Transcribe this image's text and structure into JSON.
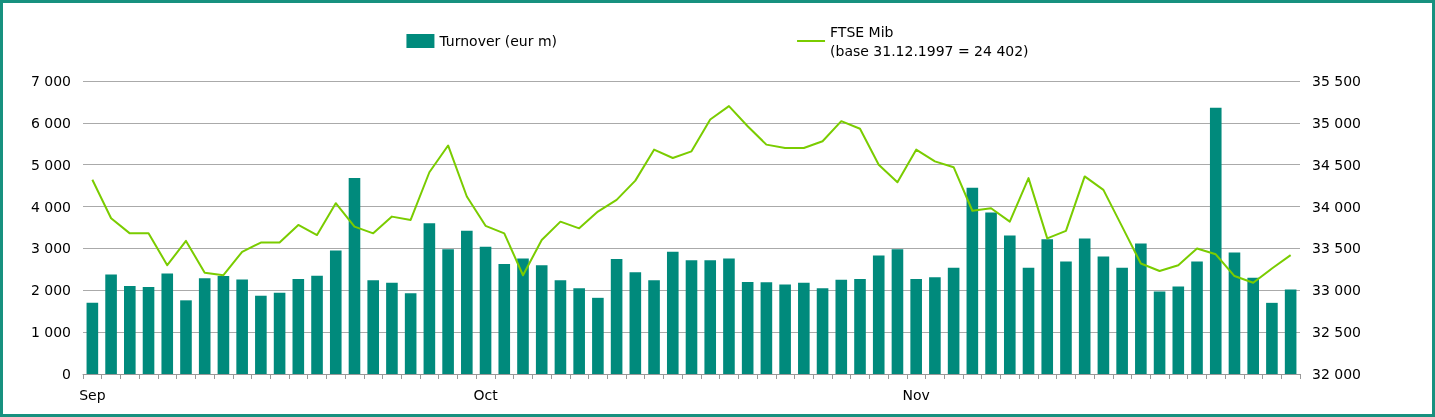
{
  "chart_data": {
    "type": "bar",
    "categories": [
      "Sep",
      null,
      null,
      null,
      null,
      null,
      null,
      null,
      null,
      null,
      null,
      null,
      null,
      null,
      null,
      null,
      null,
      null,
      null,
      null,
      null,
      "Oct",
      null,
      null,
      null,
      null,
      null,
      null,
      null,
      null,
      null,
      null,
      null,
      null,
      null,
      null,
      null,
      null,
      null,
      null,
      null,
      null,
      null,
      null,
      "Nov",
      null,
      null,
      null,
      null,
      null,
      null,
      null,
      null,
      null,
      null,
      null,
      null,
      null,
      null,
      null,
      null,
      null,
      null,
      null,
      null
    ],
    "series": [
      {
        "name": "Turnover (eur m)",
        "color": "#008a7c",
        "values": [
          1700,
          2380,
          2100,
          2080,
          2400,
          1760,
          2290,
          2340,
          2260,
          1870,
          1940,
          2270,
          2350,
          2950,
          4680,
          2240,
          2180,
          1930,
          3600,
          2980,
          3420,
          3040,
          2630,
          2760,
          2600,
          2240,
          2050,
          1820,
          2750,
          2430,
          2240,
          2920,
          2720,
          2720,
          2760,
          2200,
          2190,
          2140,
          2180,
          2050,
          2250,
          2270,
          2830,
          2980,
          2270,
          2310,
          2540,
          4450,
          3860,
          3310,
          2540,
          3220,
          2690,
          3240,
          2810,
          2540,
          3120,
          1970,
          2090,
          2690,
          6360,
          2900,
          2300,
          1700,
          2020
        ]
      },
      {
        "name": "FTSE Mib\n(base 31.12.1997 = 24 402)",
        "type": "line",
        "axis": "y2",
        "color": "#7acc00",
        "values": [
          34320,
          33860,
          33680,
          33680,
          33300,
          33590,
          33210,
          33180,
          33460,
          33570,
          33570,
          33780,
          33660,
          34040,
          33760,
          33680,
          33880,
          33840,
          34410,
          34730,
          34120,
          33770,
          33680,
          33180,
          33600,
          33820,
          33740,
          33940,
          34080,
          34310,
          34680,
          34580,
          34660,
          35040,
          35200,
          34960,
          34740,
          34700,
          34700,
          34780,
          35020,
          34930,
          34500,
          34290,
          34680,
          34540,
          34470,
          33950,
          33980,
          33820,
          34340,
          33620,
          33710,
          34360,
          34200,
          33760,
          33320,
          33230,
          33300,
          33500,
          33430,
          33170,
          33090,
          33260,
          33420
        ]
      }
    ],
    "ylim": [
      0,
      7000
    ],
    "yticks": [
      {
        "value": 0,
        "label": "0"
      },
      {
        "value": 1000,
        "label": "1 000"
      },
      {
        "value": 2000,
        "label": "2 000"
      },
      {
        "value": 3000,
        "label": "3 000"
      },
      {
        "value": 4000,
        "label": "4 000"
      },
      {
        "value": 5000,
        "label": "5 000"
      },
      {
        "value": 6000,
        "label": "6 000"
      },
      {
        "value": 7000,
        "label": "7 000"
      }
    ],
    "y2lim": [
      32000,
      35500
    ],
    "y2ticks": [
      {
        "value": 32000,
        "label": "32 000"
      },
      {
        "value": 32500,
        "label": "32 500"
      },
      {
        "value": 33000,
        "label": "33 000"
      },
      {
        "value": 33500,
        "label": "33 500"
      },
      {
        "value": 34000,
        "label": "34 000"
      },
      {
        "value": 34500,
        "label": "34 500"
      },
      {
        "value": 35000,
        "label": "35 000"
      },
      {
        "value": 35500,
        "label": "35 500"
      }
    ],
    "grid": "y",
    "legend": "top",
    "marker": "none",
    "line_style": "solid"
  }
}
